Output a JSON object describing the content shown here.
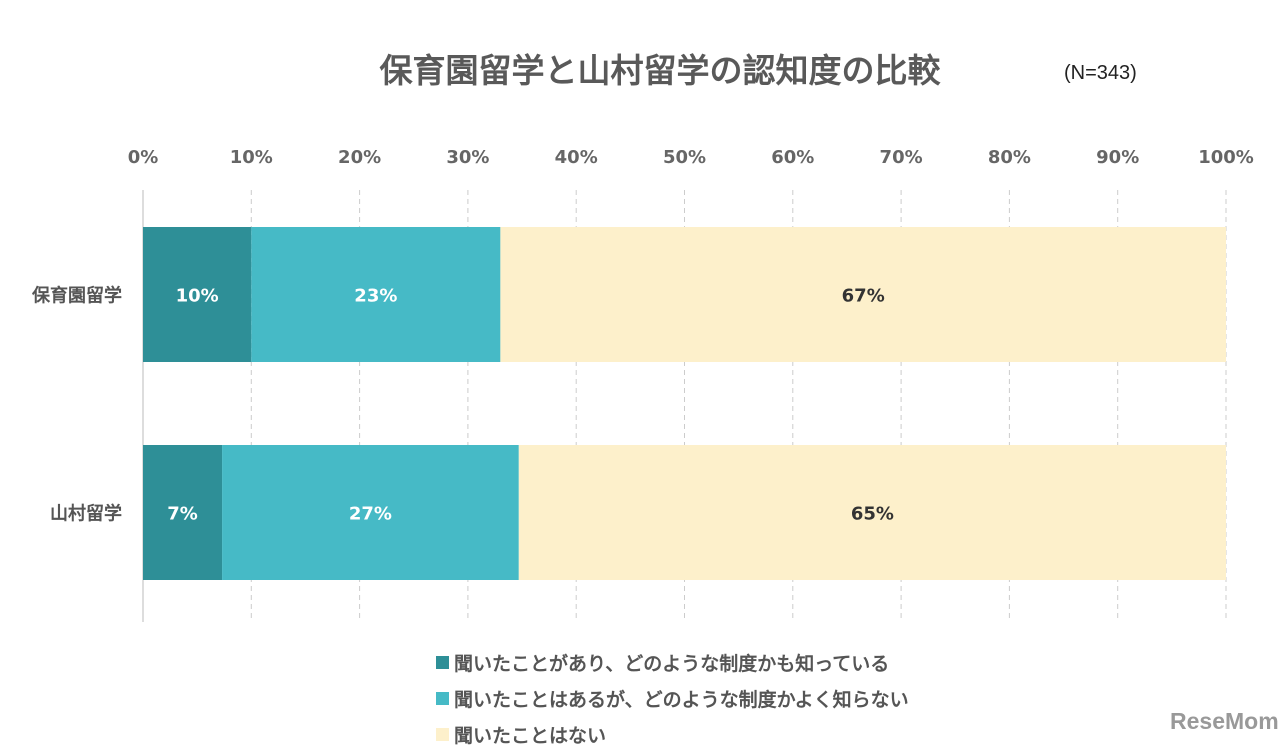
{
  "chart_data": {
    "type": "bar",
    "orientation": "horizontal-stacked",
    "title": "保育園留学と山村留学の認知度の比較",
    "subtitle": "(N=343)",
    "categories": [
      "保育園留学",
      "山村留学"
    ],
    "xlim": [
      0,
      100
    ],
    "xticks": [
      "0%",
      "10%",
      "20%",
      "30%",
      "40%",
      "50%",
      "60%",
      "70%",
      "80%",
      "90%",
      "100%"
    ],
    "grid": true,
    "legend_position": "bottom",
    "series": [
      {
        "name": "聞いたことがあり、どのような制度かも知っている",
        "color": "#2e8f97",
        "label_color": "#ffffff",
        "values": [
          10,
          7.3
        ],
        "labels": [
          "10%",
          "7%"
        ]
      },
      {
        "name": "聞いたことはあるが、どのような制度かよく知らない",
        "color": "#46bac6",
        "label_color": "#ffffff",
        "values": [
          23,
          27.4
        ],
        "labels": [
          "23%",
          "27%"
        ]
      },
      {
        "name": "聞いたことはない",
        "color": "#fdf0cb",
        "label_color": "#333333",
        "values": [
          67,
          65.3
        ],
        "labels": [
          "67%",
          "65%"
        ]
      }
    ]
  },
  "logo": "ReseMom"
}
